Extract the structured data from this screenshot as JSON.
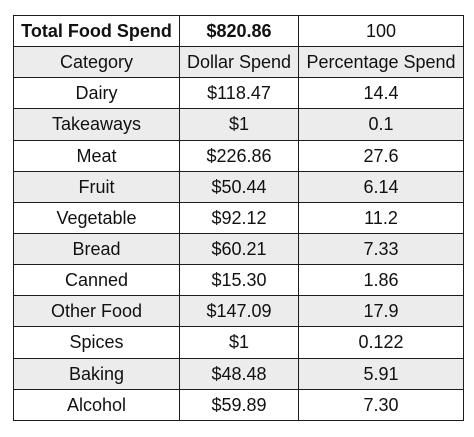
{
  "total_row": {
    "label": "Total Food Spend",
    "dollar": "$820.86",
    "percentage": "100"
  },
  "header_row": {
    "category": "Category",
    "dollar": "Dollar Spend",
    "percentage": "Percentage Spend"
  },
  "rows": [
    {
      "category": "Dairy",
      "dollar": "$118.47",
      "percentage": "14.4"
    },
    {
      "category": "Takeaways",
      "dollar": "$1",
      "percentage": "0.1"
    },
    {
      "category": "Meat",
      "dollar": "$226.86",
      "percentage": "27.6"
    },
    {
      "category": "Fruit",
      "dollar": "$50.44",
      "percentage": "6.14"
    },
    {
      "category": "Vegetable",
      "dollar": "$92.12",
      "percentage": "11.2"
    },
    {
      "category": "Bread",
      "dollar": "$60.21",
      "percentage": "7.33"
    },
    {
      "category": "Canned",
      "dollar": "$15.30",
      "percentage": "1.86"
    },
    {
      "category": "Other Food",
      "dollar": "$147.09",
      "percentage": "17.9"
    },
    {
      "category": "Spices",
      "dollar": "$1",
      "percentage": "0.122"
    },
    {
      "category": "Baking",
      "dollar": "$48.48",
      "percentage": "5.91"
    },
    {
      "category": "Alcohol",
      "dollar": "$59.89",
      "percentage": "7.30"
    }
  ],
  "colors": {
    "shaded_row": "#ececec",
    "plain_row": "#ffffff",
    "border": "#1c1c1c",
    "text": "#111111"
  }
}
